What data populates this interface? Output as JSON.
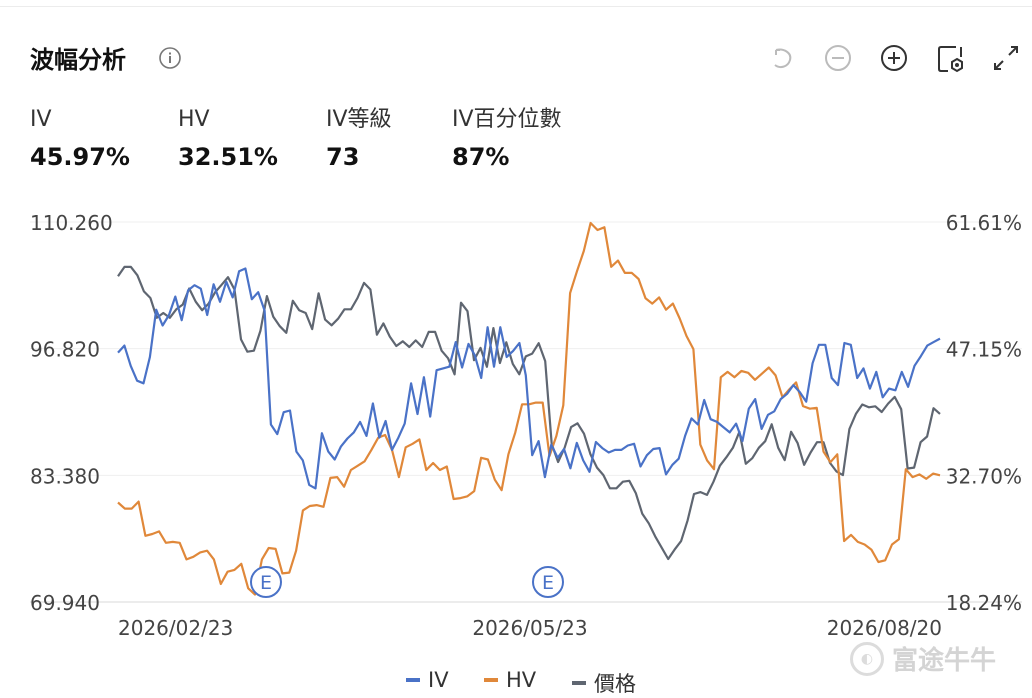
{
  "header": {
    "title": "波幅分析",
    "info_icon": "info-icon",
    "toolbar": [
      "undo-icon",
      "zoom-out-icon",
      "zoom-in-icon",
      "settings-icon",
      "fullscreen-icon"
    ]
  },
  "stats": [
    {
      "label": "IV",
      "value": "45.97%"
    },
    {
      "label": "HV",
      "value": "32.51%"
    },
    {
      "label": "IV等級",
      "value": "73"
    },
    {
      "label": "IV百分位數",
      "value": "87%"
    }
  ],
  "legend": [
    {
      "name": "IV",
      "color": "#4a72c7"
    },
    {
      "name": "HV",
      "color": "#e0883a"
    },
    {
      "name": "價格",
      "color": "#5f6671"
    }
  ],
  "watermark": "富途牛牛",
  "chart_data": {
    "type": "line",
    "x_ticks": [
      "2026/02/23",
      "2026/05/23",
      "2026/08/20"
    ],
    "y_left_ticks": [
      "110.260",
      "96.820",
      "83.380",
      "69.940"
    ],
    "y_left_range": [
      69.94,
      110.26
    ],
    "y_right_ticks": [
      "61.61%",
      "47.15%",
      "32.70%",
      "18.24%"
    ],
    "y_right_range": [
      18.24,
      61.61
    ],
    "earnings_markers": [
      {
        "label": "E",
        "date": "2026/03/09"
      },
      {
        "label": "E",
        "date": "2026/05/23"
      }
    ],
    "series": [
      {
        "name": "IV",
        "axis": "right",
        "color": "#4a72c7",
        "values": [
          46.7,
          47.5,
          45.2,
          43.5,
          43.2,
          46.2,
          51.6,
          49.8,
          51.0,
          53.1,
          50.4,
          53.8,
          54.4,
          54.0,
          51.0,
          54.5,
          52.5,
          54.8,
          53.0,
          56.0,
          56.3,
          52.8,
          53.6,
          51.5,
          38.5,
          37.4,
          39.9,
          40.1,
          35.4,
          34.4,
          31.6,
          31.2,
          37.5,
          35.4,
          34.5,
          36.0,
          36.9,
          37.6,
          38.8,
          37.2,
          40.9,
          37.0,
          38.9,
          35.6,
          37.0,
          38.6,
          43.2,
          39.7,
          43.9,
          39.4,
          44.7,
          44.9,
          45.1,
          47.9,
          45.0,
          47.7,
          46.4,
          43.8,
          49.6,
          45.1,
          49.6,
          46.2,
          46.9,
          47.8,
          44.1,
          35.0,
          36.6,
          32.5,
          36.2,
          34.7,
          35.7,
          33.5,
          36.4,
          34.4,
          33.1,
          36.5,
          35.8,
          35.3,
          35.6,
          35.6,
          36.1,
          36.3,
          33.7,
          35.0,
          35.7,
          35.8,
          32.8,
          33.9,
          34.6,
          37.2,
          39.2,
          38.5,
          41.3,
          39.1,
          38.8,
          38.2,
          37.6,
          38.6,
          36.6,
          40.3,
          41.4,
          38.0,
          39.6,
          40.0,
          41.4,
          42.0,
          43.0,
          42.2,
          41.1,
          45.5,
          47.6,
          47.6,
          43.8,
          43.0,
          47.8,
          47.6,
          43.8,
          44.9,
          42.6,
          44.5,
          41.6,
          42.6,
          42.4,
          44.5,
          42.8,
          45.2,
          46.3,
          47.5,
          47.9,
          48.3
        ]
      },
      {
        "name": "HV",
        "axis": "right",
        "color": "#e0883a",
        "values": [
          29.6,
          28.9,
          28.9,
          29.7,
          25.8,
          26.0,
          26.3,
          25.0,
          25.1,
          25.0,
          23.1,
          23.4,
          23.9,
          24.1,
          23.1,
          20.3,
          21.7,
          21.9,
          22.6,
          19.8,
          19.1,
          23.1,
          24.4,
          24.3,
          21.5,
          21.6,
          24.1,
          28.7,
          29.2,
          29.3,
          29.1,
          32.4,
          32.5,
          31.4,
          33.3,
          33.8,
          34.3,
          35.6,
          37.0,
          37.3,
          35.6,
          32.5,
          35.9,
          36.3,
          36.8,
          33.3,
          34.1,
          33.3,
          33.7,
          30.0,
          30.1,
          30.3,
          30.9,
          34.7,
          34.5,
          32.2,
          31.0,
          35.1,
          37.6,
          40.8,
          40.8,
          41.0,
          41.0,
          34.9,
          37.2,
          40.7,
          53.5,
          56.0,
          58.3,
          61.5,
          60.7,
          61.0,
          56.5,
          57.2,
          55.8,
          55.8,
          55.1,
          52.9,
          52.3,
          53.0,
          51.6,
          52.3,
          50.6,
          48.6,
          47.1,
          36.2,
          34.4,
          33.4,
          43.9,
          44.5,
          43.9,
          44.6,
          44.4,
          43.6,
          44.3,
          45.0,
          44.1,
          41.6,
          42.5,
          43.3,
          40.6,
          40.3,
          40.4,
          35.4,
          34.2,
          35.1,
          25.2,
          25.9,
          25.1,
          24.8,
          24.2,
          22.8,
          23.0,
          24.8,
          25.4,
          33.4,
          32.5,
          32.8,
          32.3,
          32.9,
          32.7
        ]
      },
      {
        "name": "價格",
        "axis": "left",
        "color": "#5f6671",
        "values": [
          104.5,
          105.5,
          105.5,
          104.6,
          102.9,
          102.2,
          100.1,
          100.6,
          100.1,
          101.0,
          101.5,
          103.2,
          101.8,
          100.9,
          101.6,
          102.8,
          103.6,
          104.4,
          103.1,
          97.8,
          96.5,
          96.6,
          98.7,
          102.4,
          100.2,
          99.2,
          98.5,
          101.9,
          100.9,
          100.6,
          98.9,
          102.7,
          99.9,
          99.3,
          100.0,
          101.0,
          101.0,
          102.2,
          103.8,
          103.1,
          98.3,
          99.5,
          98.1,
          97.1,
          97.6,
          97.0,
          97.7,
          97.0,
          98.6,
          98.6,
          96.6,
          95.8,
          94.1,
          101.7,
          100.8,
          95.6,
          96.9,
          94.9,
          99.0,
          95.3,
          97.5,
          95.2,
          94.1,
          96.0,
          96.3,
          97.4,
          95.5,
          86.7,
          84.8,
          86.3,
          88.5,
          88.9,
          87.8,
          85.6,
          84.2,
          83.4,
          82.0,
          82.0,
          82.7,
          82.8,
          81.5,
          79.3,
          78.3,
          76.9,
          75.7,
          74.5,
          75.5,
          76.4,
          78.6,
          81.4,
          81.6,
          81.3,
          82.7,
          84.4,
          85.3,
          86.3,
          88.0,
          84.6,
          85.2,
          86.3,
          87.0,
          88.8,
          86.3,
          85.0,
          88.0,
          86.8,
          84.5,
          85.8,
          86.9,
          86.9,
          84.7,
          83.8,
          83.4,
          88.3,
          89.9,
          90.9,
          90.6,
          90.7,
          90.1,
          91.0,
          91.7,
          90.4,
          84.1,
          84.2,
          86.9,
          87.5,
          90.5,
          89.9
        ]
      }
    ]
  }
}
